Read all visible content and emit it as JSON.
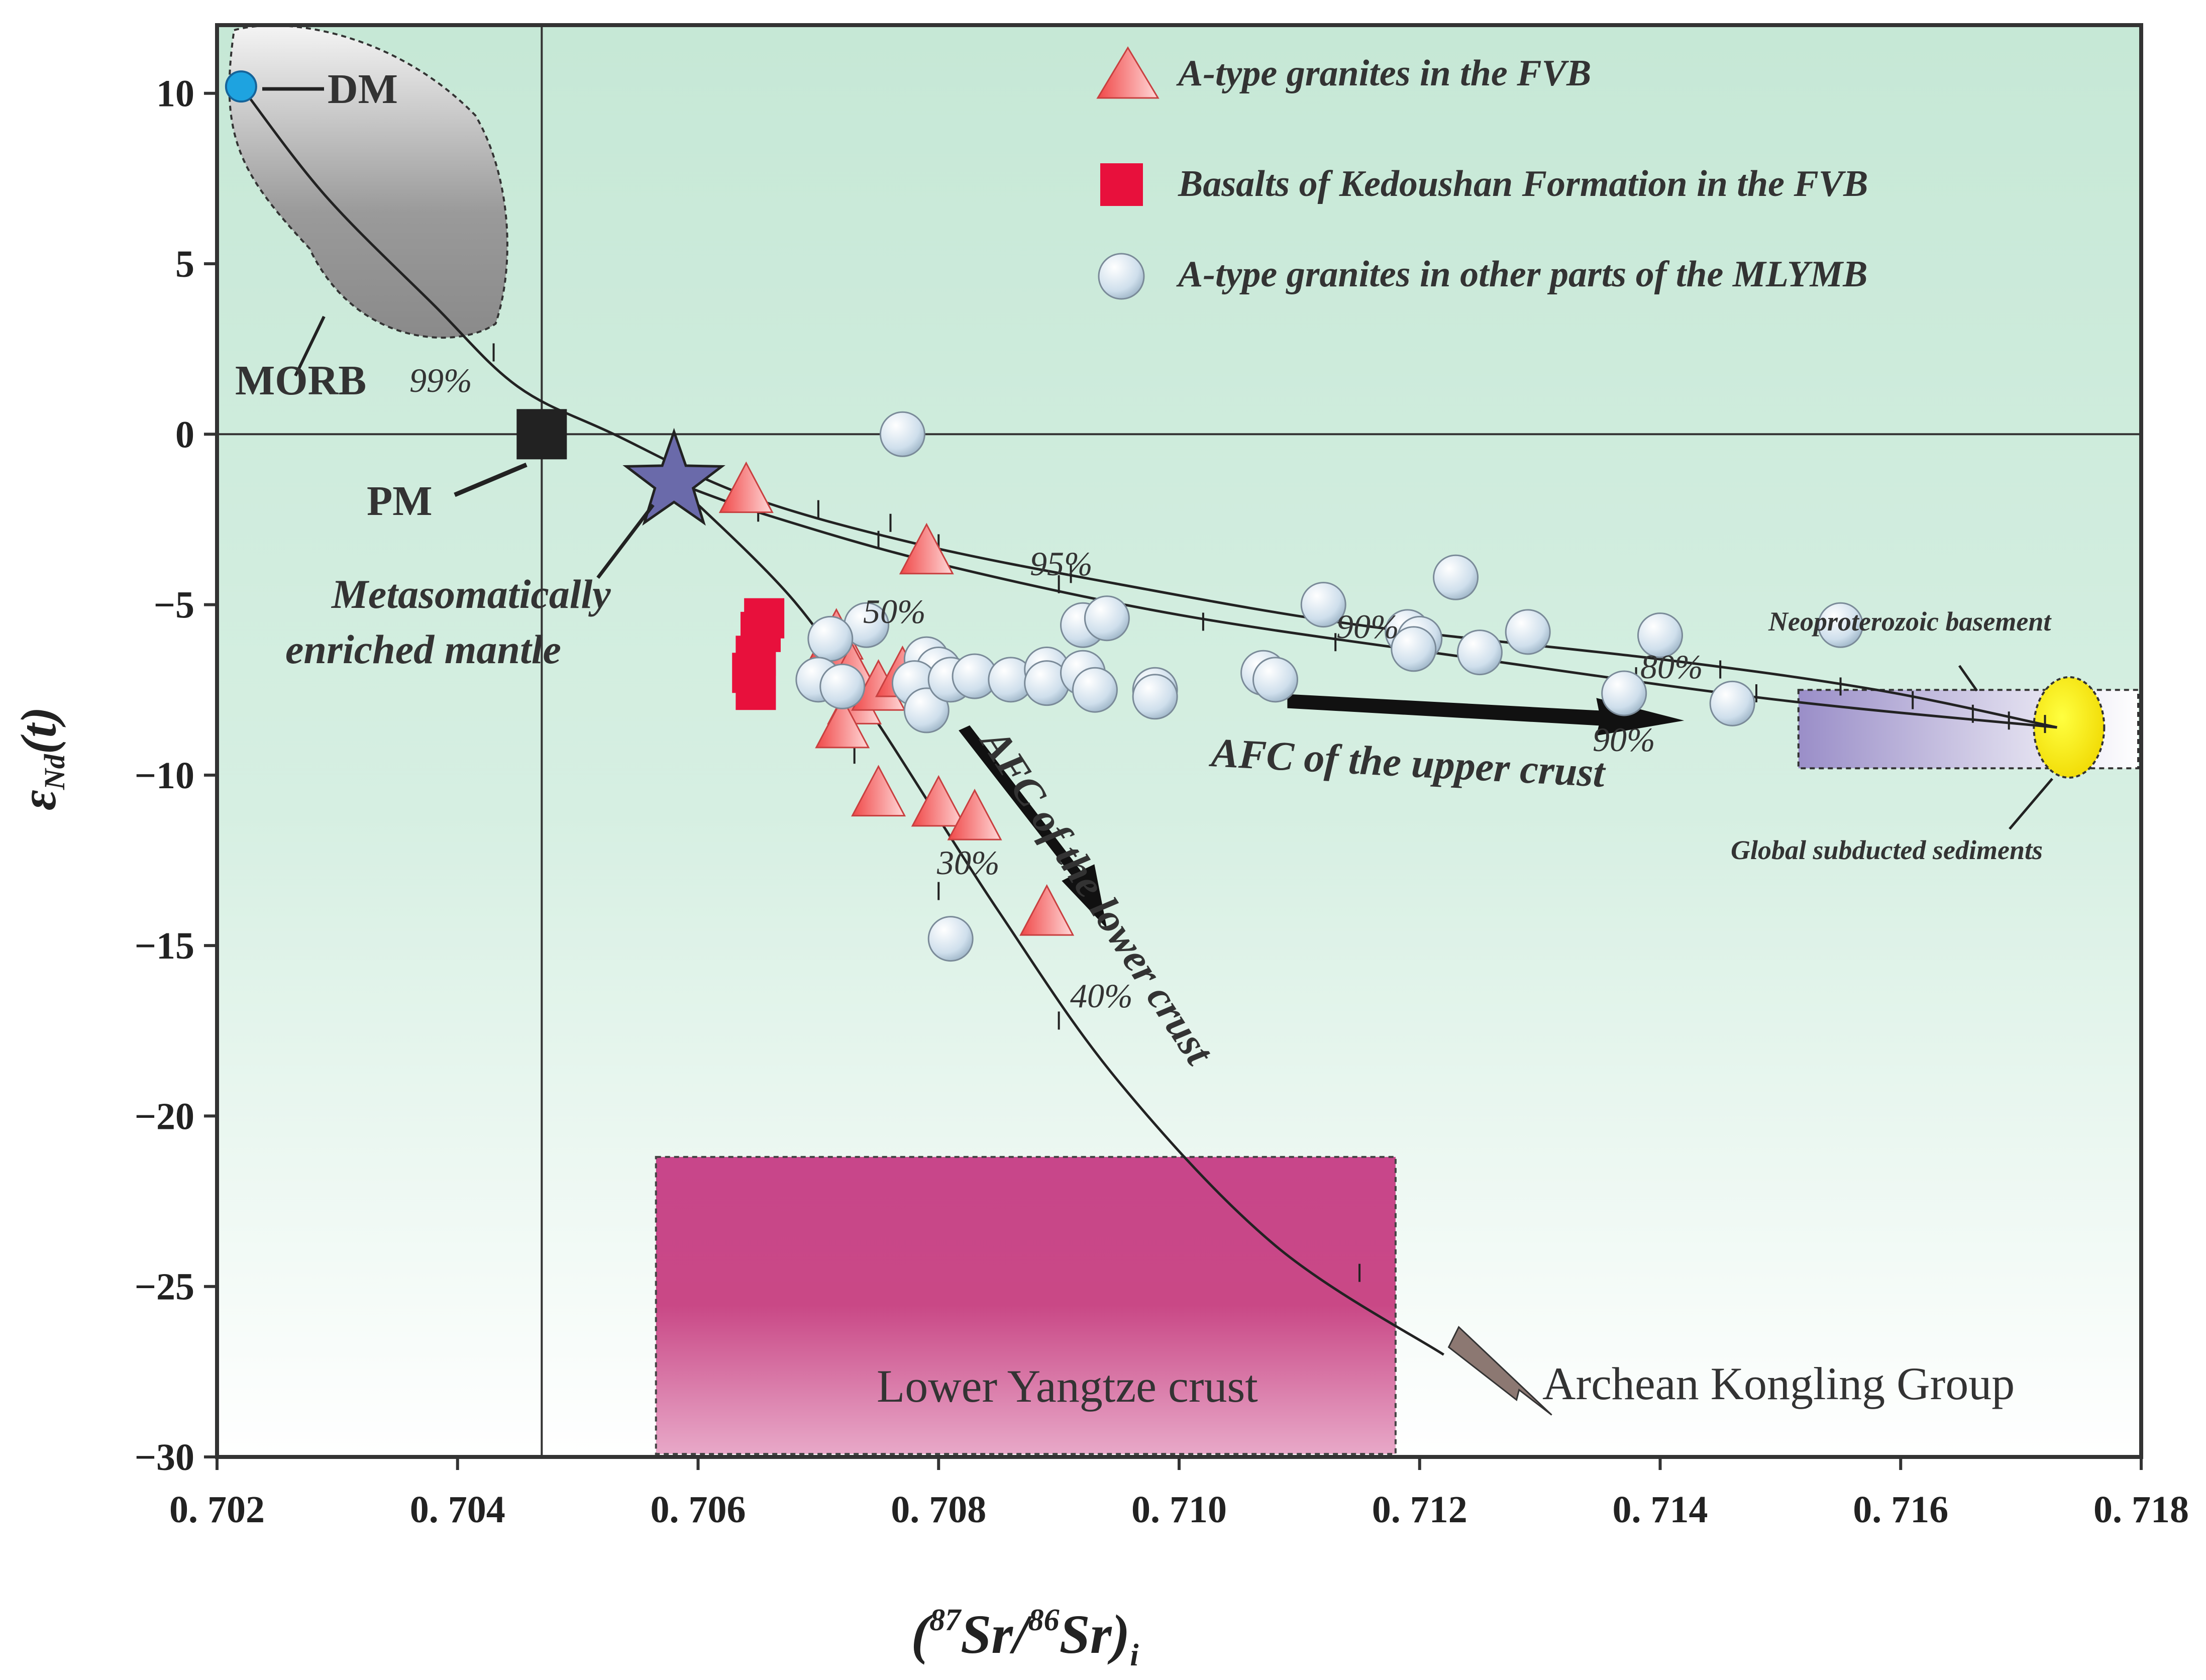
{
  "colors": {
    "plot_bg_top": "#c9ead9",
    "plot_bg_bottom": "#ffffff",
    "frame": "#333333",
    "triangle": "#f05a5a",
    "square": "#e8103c",
    "circle": "#dce8f2",
    "dm": "#1ea3e0",
    "pm": "#222222",
    "star": "#6a6aaa",
    "lower_crust_box": "#c84884",
    "neo_box": "#9a8cc8",
    "sediments": "#f6e800"
  },
  "chart_data": {
    "type": "scatter",
    "title": "",
    "xlabel": "(87Sr/86Sr)i",
    "ylabel": "εNd(t)",
    "xlim": [
      0.702,
      0.718
    ],
    "ylim": [
      -30,
      12
    ],
    "xticks": [
      0.702,
      0.704,
      0.706,
      0.708,
      0.71,
      0.712,
      0.714,
      0.716,
      0.718
    ],
    "xtick_labels": [
      "0. 702",
      "0. 704",
      "0. 706",
      "0. 708",
      "0. 710",
      "0. 712",
      "0. 714",
      "0. 716",
      "0. 718"
    ],
    "yticks": [
      10,
      5,
      0,
      -5,
      -10,
      -15,
      -20,
      -25,
      -30
    ],
    "ytick_labels": [
      "10",
      "5",
      "0",
      "−5",
      "−10",
      "−15",
      "−20",
      "−25",
      "−30"
    ],
    "legend": [
      {
        "marker": "triangle",
        "label": "A-type granites in the FVB"
      },
      {
        "marker": "square",
        "label": "Basalts of Kedoushan Formation in the FVB"
      },
      {
        "marker": "circle",
        "label": "A-type granites in other parts of the MLYMB"
      }
    ],
    "series": [
      {
        "name": "A-type granites in the FVB",
        "marker": "triangle",
        "points": [
          [
            0.7064,
            -1.7
          ],
          [
            0.7079,
            -3.5
          ],
          [
            0.70715,
            -6.0
          ],
          [
            0.70722,
            -6.6
          ],
          [
            0.70728,
            -7.0
          ],
          [
            0.7073,
            -7.9
          ],
          [
            0.7075,
            -7.5
          ],
          [
            0.7077,
            -7.1
          ],
          [
            0.7072,
            -8.6
          ],
          [
            0.7075,
            -10.6
          ],
          [
            0.708,
            -10.9
          ],
          [
            0.7083,
            -11.3
          ],
          [
            0.7089,
            -14.1
          ]
        ]
      },
      {
        "name": "Basalts of Kedoushan Formation in the FVB",
        "marker": "square",
        "points": [
          [
            0.70655,
            -5.4
          ],
          [
            0.70652,
            -5.8
          ],
          [
            0.70648,
            -6.5
          ],
          [
            0.70645,
            -7.0
          ],
          [
            0.70648,
            -7.5
          ]
        ]
      },
      {
        "name": "A-type granites in other parts of the MLYMB",
        "marker": "circle",
        "points": [
          [
            0.7077,
            0.0
          ],
          [
            0.7074,
            -5.6
          ],
          [
            0.7071,
            -6.0
          ],
          [
            0.707,
            -7.2
          ],
          [
            0.7072,
            -7.4
          ],
          [
            0.7079,
            -6.6
          ],
          [
            0.708,
            -6.9
          ],
          [
            0.7078,
            -7.3
          ],
          [
            0.7079,
            -8.1
          ],
          [
            0.7081,
            -7.2
          ],
          [
            0.7083,
            -7.1
          ],
          [
            0.7086,
            -7.2
          ],
          [
            0.7089,
            -6.9
          ],
          [
            0.7089,
            -7.3
          ],
          [
            0.7092,
            -7.0
          ],
          [
            0.7093,
            -7.5
          ],
          [
            0.7092,
            -5.6
          ],
          [
            0.7094,
            -5.4
          ],
          [
            0.7098,
            -7.5
          ],
          [
            0.7098,
            -7.7
          ],
          [
            0.7107,
            -7.0
          ],
          [
            0.7108,
            -7.2
          ],
          [
            0.7112,
            -5.0
          ],
          [
            0.7119,
            -5.8
          ],
          [
            0.712,
            -6.0
          ],
          [
            0.71195,
            -6.3
          ],
          [
            0.7123,
            -4.2
          ],
          [
            0.7125,
            -6.4
          ],
          [
            0.7129,
            -5.8
          ],
          [
            0.7137,
            -7.6
          ],
          [
            0.714,
            -5.9
          ],
          [
            0.7146,
            -7.9
          ],
          [
            0.7155,
            -5.6
          ],
          [
            0.7081,
            -14.8
          ]
        ]
      }
    ],
    "end_members": [
      {
        "name": "DM",
        "x": 0.7022,
        "y": 10.2,
        "marker": "circle-blue"
      },
      {
        "name": "PM",
        "x": 0.7047,
        "y": 0.0,
        "marker": "square-black"
      },
      {
        "name": "Metasomatically enriched mantle",
        "x": 0.7058,
        "y": -1.4,
        "marker": "star"
      }
    ],
    "reference_lines": {
      "vertical_x": 0.7047,
      "horizontal_y": 0
    },
    "mixing_curves": [
      {
        "name": "DM to global subducted sediments",
        "points": [
          [
            0.7022,
            10.2
          ],
          [
            0.7029,
            7.0
          ],
          [
            0.7038,
            3.8
          ],
          [
            0.7045,
            1.4
          ],
          [
            0.7053,
            0.0
          ],
          [
            0.7064,
            -1.8
          ],
          [
            0.7078,
            -3.2
          ],
          [
            0.7095,
            -4.4
          ],
          [
            0.7115,
            -5.6
          ],
          [
            0.714,
            -6.6
          ],
          [
            0.7158,
            -7.5
          ],
          [
            0.7173,
            -8.6
          ]
        ],
        "ticks": [
          [
            0.7043,
            2.4
          ],
          [
            0.7064,
            -1.8
          ],
          [
            0.707,
            -2.2
          ],
          [
            0.7076,
            -2.6
          ],
          [
            0.708,
            -3.2
          ],
          [
            0.7091,
            -4.1
          ],
          [
            0.7145,
            -6.9
          ],
          [
            0.7155,
            -7.4
          ],
          [
            0.7161,
            -7.8
          ],
          [
            0.7166,
            -8.2
          ],
          [
            0.7169,
            -8.4
          ],
          [
            0.7172,
            -8.5
          ]
        ]
      },
      {
        "name": "Metasomatically enriched mantle to upper crust",
        "points": [
          [
            0.7058,
            -1.4
          ],
          [
            0.7066,
            -2.4
          ],
          [
            0.708,
            -3.8
          ],
          [
            0.71,
            -5.3
          ],
          [
            0.7125,
            -6.6
          ],
          [
            0.715,
            -7.8
          ],
          [
            0.7173,
            -8.6
          ]
        ],
        "ticks": [
          [
            0.7065,
            -2.3
          ],
          [
            0.7075,
            -3.1
          ],
          [
            0.709,
            -4.4
          ],
          [
            0.7102,
            -5.5
          ],
          [
            0.7113,
            -6.1
          ],
          [
            0.7138,
            -7.1
          ],
          [
            0.7148,
            -7.6
          ]
        ]
      },
      {
        "name": "Metasomatically enriched mantle to Archean Kongling Group",
        "points": [
          [
            0.7058,
            -1.4
          ],
          [
            0.7068,
            -4.9
          ],
          [
            0.7075,
            -8.5
          ],
          [
            0.7085,
            -14.0
          ],
          [
            0.7095,
            -19.0
          ],
          [
            0.7108,
            -23.8
          ],
          [
            0.7122,
            -27.0
          ]
        ],
        "ticks": [
          [
            0.7073,
            -9.4
          ],
          [
            0.708,
            -13.4
          ],
          [
            0.709,
            -17.2
          ],
          [
            0.7115,
            -24.6
          ]
        ]
      }
    ],
    "fields": [
      {
        "name": "MORB",
        "shape": "ellipse",
        "x_range": [
          0.7021,
          0.7044
        ],
        "y_range": [
          2.8,
          12.0
        ]
      },
      {
        "name": "Lower Yangtze crust",
        "shape": "rectangle",
        "x_range": [
          0.70565,
          0.7118
        ],
        "y_range": [
          -30.0,
          -21.2
        ]
      },
      {
        "name": "Neoproterozoic basement",
        "shape": "rectangle",
        "x_range": [
          0.71515,
          0.718
        ],
        "y_range": [
          -9.8,
          -7.5
        ]
      },
      {
        "name": "Global subducted sediments",
        "shape": "ellipse",
        "x": 0.7174,
        "y": -8.6
      }
    ],
    "annotations": {
      "dm": "DM",
      "morb": "MORB",
      "pm": "PM",
      "meta_1": "Metasomatically",
      "meta_2": "enriched  mantle",
      "pct_99": "99%",
      "pct_95": "95%",
      "pct_50": "50%",
      "pct_90a": "90%",
      "pct_80": "80%",
      "pct_90b": "90%",
      "pct_30": "30%",
      "pct_40": "40%",
      "afc_upper": "AFC of the upper crust",
      "afc_lower": "AFC of the lower crust",
      "neo": "Neoproterozoic basement",
      "sediments": "Global subducted sediments",
      "lower_yangtze": "Lower Yangtze crust",
      "kongling": "Archean  Kongling  Group"
    }
  }
}
